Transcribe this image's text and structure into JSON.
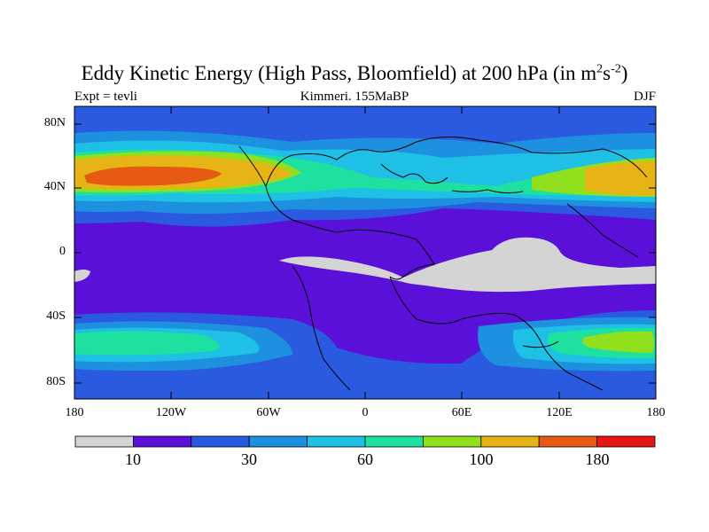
{
  "title": {
    "main": "Eddy Kinetic Energy (High Pass, Bloomfield) at 200 hPa (in m",
    "sup1": "2",
    "mid": "s",
    "sup2": "-2",
    "end": ")"
  },
  "subtitle": {
    "left": "Expt = tevli",
    "center": "Kimmeri. 155MaBP",
    "right": "DJF"
  },
  "lat_labels": [
    "80N",
    "40N",
    "0",
    "40S",
    "80S"
  ],
  "lon_labels": [
    "180",
    "120W",
    "60W",
    "0",
    "60E",
    "120E",
    "180"
  ],
  "colorbar": {
    "labels": [
      "10",
      "30",
      "60",
      "100",
      "180"
    ],
    "colors": [
      "#d4d4d4",
      "#5a10d8",
      "#2a5ae0",
      "#1e90e0",
      "#1ec0e6",
      "#1ee0a0",
      "#90e01e",
      "#e6b414",
      "#e65a14",
      "#e61414"
    ]
  },
  "map_colors": {
    "grey": "#d4d4d4",
    "purple": "#5a10d8",
    "blue": "#2a5ae0",
    "mid_blue": "#1e90e0",
    "light_blue": "#1ec0e6",
    "teal": "#1ee0a0",
    "green": "#90e01e",
    "yellow": "#e6b414",
    "orange": "#e65a14"
  }
}
